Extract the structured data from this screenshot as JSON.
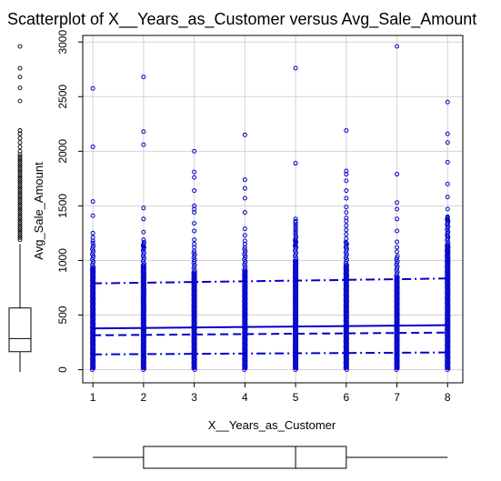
{
  "chart_data": {
    "type": "scatter",
    "title": "Scatterplot of X__Years_as_Customer versus Avg_Sale_Amount",
    "xlabel": "X__Years_as_Customer",
    "ylabel": "Avg_Sale_Amount",
    "xlim": [
      0.8,
      8.3
    ],
    "ylim": [
      -120,
      3060
    ],
    "x_ticks": [
      1,
      2,
      3,
      4,
      5,
      6,
      7,
      8
    ],
    "y_ticks": [
      0,
      500,
      1000,
      1500,
      2000,
      2500,
      3000
    ],
    "grid": true,
    "point_color": "#0000cc",
    "dense_range_max": [
      1150,
      1180,
      1100,
      1120,
      1230,
      1180,
      1050,
      1400
    ],
    "series": [
      {
        "x": [
          1,
          1,
          1,
          1,
          1,
          1,
          1,
          1,
          2,
          2,
          2,
          2,
          2,
          2,
          2,
          2,
          2,
          2,
          3,
          3,
          3,
          3,
          3,
          3,
          3,
          3,
          3,
          3,
          3,
          3,
          4,
          4,
          4,
          4,
          4,
          4,
          4,
          4,
          4,
          5,
          5,
          5,
          5,
          5,
          5,
          5,
          5,
          5,
          5,
          5,
          5,
          5,
          5,
          5,
          5,
          6,
          6,
          6,
          6,
          6,
          6,
          6,
          6,
          6,
          6,
          6,
          6,
          6,
          6,
          6,
          6,
          7,
          7,
          7,
          7,
          7,
          7,
          7,
          7,
          7,
          8,
          8,
          8,
          8,
          8,
          8,
          8,
          8,
          8,
          8,
          8,
          8,
          8,
          8,
          8,
          8,
          8,
          8
        ],
        "y": [
          2575,
          2040,
          1540,
          1410,
          1250,
          1210,
          1180,
          1160,
          2680,
          2180,
          2060,
          1480,
          1380,
          1260,
          1190,
          1150,
          1130,
          1110,
          2000,
          1810,
          1760,
          1640,
          1500,
          1470,
          1440,
          1340,
          1270,
          1190,
          1150,
          1120,
          2150,
          1740,
          1660,
          1570,
          1440,
          1290,
          1230,
          1180,
          1150,
          2760,
          1890,
          1380,
          1360,
          1350,
          1330,
          1310,
          1290,
          1270,
          1250,
          1230,
          1200,
          1180,
          1160,
          1140,
          1120,
          2190,
          1820,
          1790,
          1730,
          1640,
          1570,
          1490,
          1440,
          1390,
          1360,
          1320,
          1280,
          1240,
          1200,
          1160,
          1120,
          2960,
          1790,
          1530,
          1470,
          1380,
          1270,
          1170,
          1120,
          1080,
          2450,
          2160,
          2080,
          1900,
          1700,
          1580,
          1470,
          1400,
          1380,
          1360,
          1340,
          1300,
          1250,
          1220,
          1200,
          1150,
          1110,
          1080
        ]
      }
    ],
    "regression_line": {
      "y_at_x1": 378,
      "y_at_x8": 408
    },
    "upper_quantile_line": {
      "y_at_x1": 790,
      "y_at_x8": 835
    },
    "median_line": {
      "y_at_x1": 315,
      "y_at_x8": 340
    },
    "lower_quantile_line": {
      "y_at_x1": 140,
      "y_at_x8": 158
    },
    "y_boxplot": {
      "min": -20,
      "q1": 165,
      "median": 285,
      "q3": 565,
      "whisker_high": 1150,
      "outliers": [
        1190,
        1210,
        1230,
        1250,
        1270,
        1290,
        1310,
        1330,
        1350,
        1370,
        1390,
        1410,
        1430,
        1450,
        1470,
        1490,
        1510,
        1530,
        1550,
        1570,
        1590,
        1610,
        1630,
        1650,
        1670,
        1690,
        1710,
        1730,
        1750,
        1770,
        1790,
        1810,
        1830,
        1850,
        1870,
        1890,
        1910,
        1930,
        1950,
        1970,
        2000,
        2040,
        2080,
        2120,
        2160,
        2190,
        2460,
        2580,
        2680,
        2760,
        2960
      ]
    },
    "x_boxplot": {
      "min": 1,
      "q1": 2,
      "median": 5,
      "q3": 6,
      "max": 8
    }
  }
}
